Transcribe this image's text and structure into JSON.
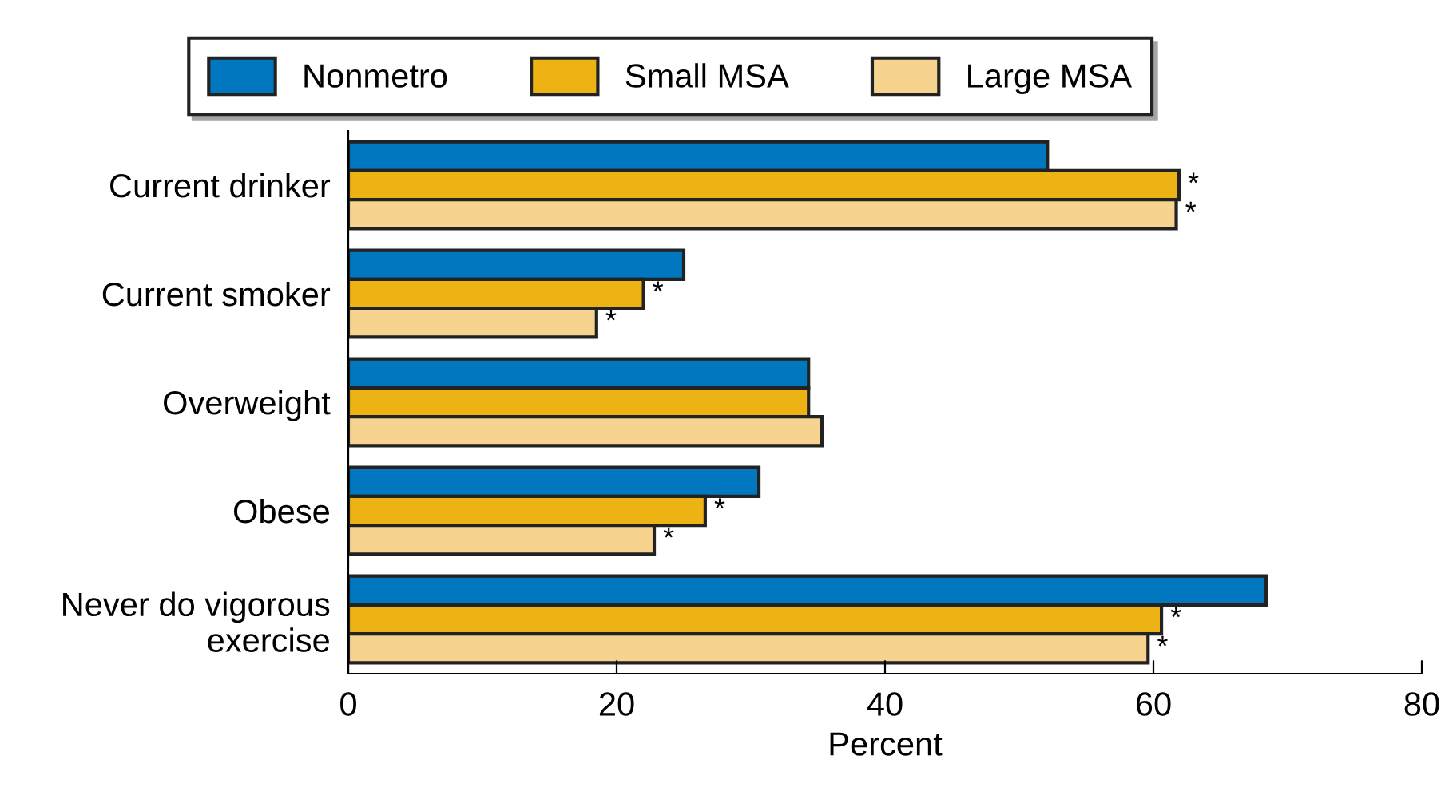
{
  "chart_data": {
    "type": "bar",
    "orientation": "horizontal",
    "xlabel": "Percent",
    "categories": [
      "Current drinker",
      "Current smoker",
      "Overweight",
      "Obese",
      "Never do vigorous\nexercise"
    ],
    "series": [
      {
        "name": "Nonmetro",
        "color": "#0077bf",
        "values": [
          52.1,
          25.0,
          34.3,
          30.6,
          68.4
        ],
        "value_labels": [
          null,
          null,
          null,
          null,
          null
        ]
      },
      {
        "name": "Small MSA",
        "color": "#edb314",
        "values": [
          61.9,
          22.0,
          34.3,
          26.6,
          60.6
        ],
        "value_labels": [
          "*",
          "*",
          null,
          "*",
          "*"
        ]
      },
      {
        "name": "Large MSA",
        "color": "#f6d38e",
        "values": [
          61.7,
          18.5,
          35.3,
          22.8,
          59.6
        ],
        "value_labels": [
          "*",
          "*",
          null,
          "*",
          "*"
        ]
      }
    ],
    "xlim": [
      0,
      80
    ],
    "xticks": [
      0,
      20,
      40,
      60,
      80
    ],
    "grid": false,
    "legend": "top"
  }
}
